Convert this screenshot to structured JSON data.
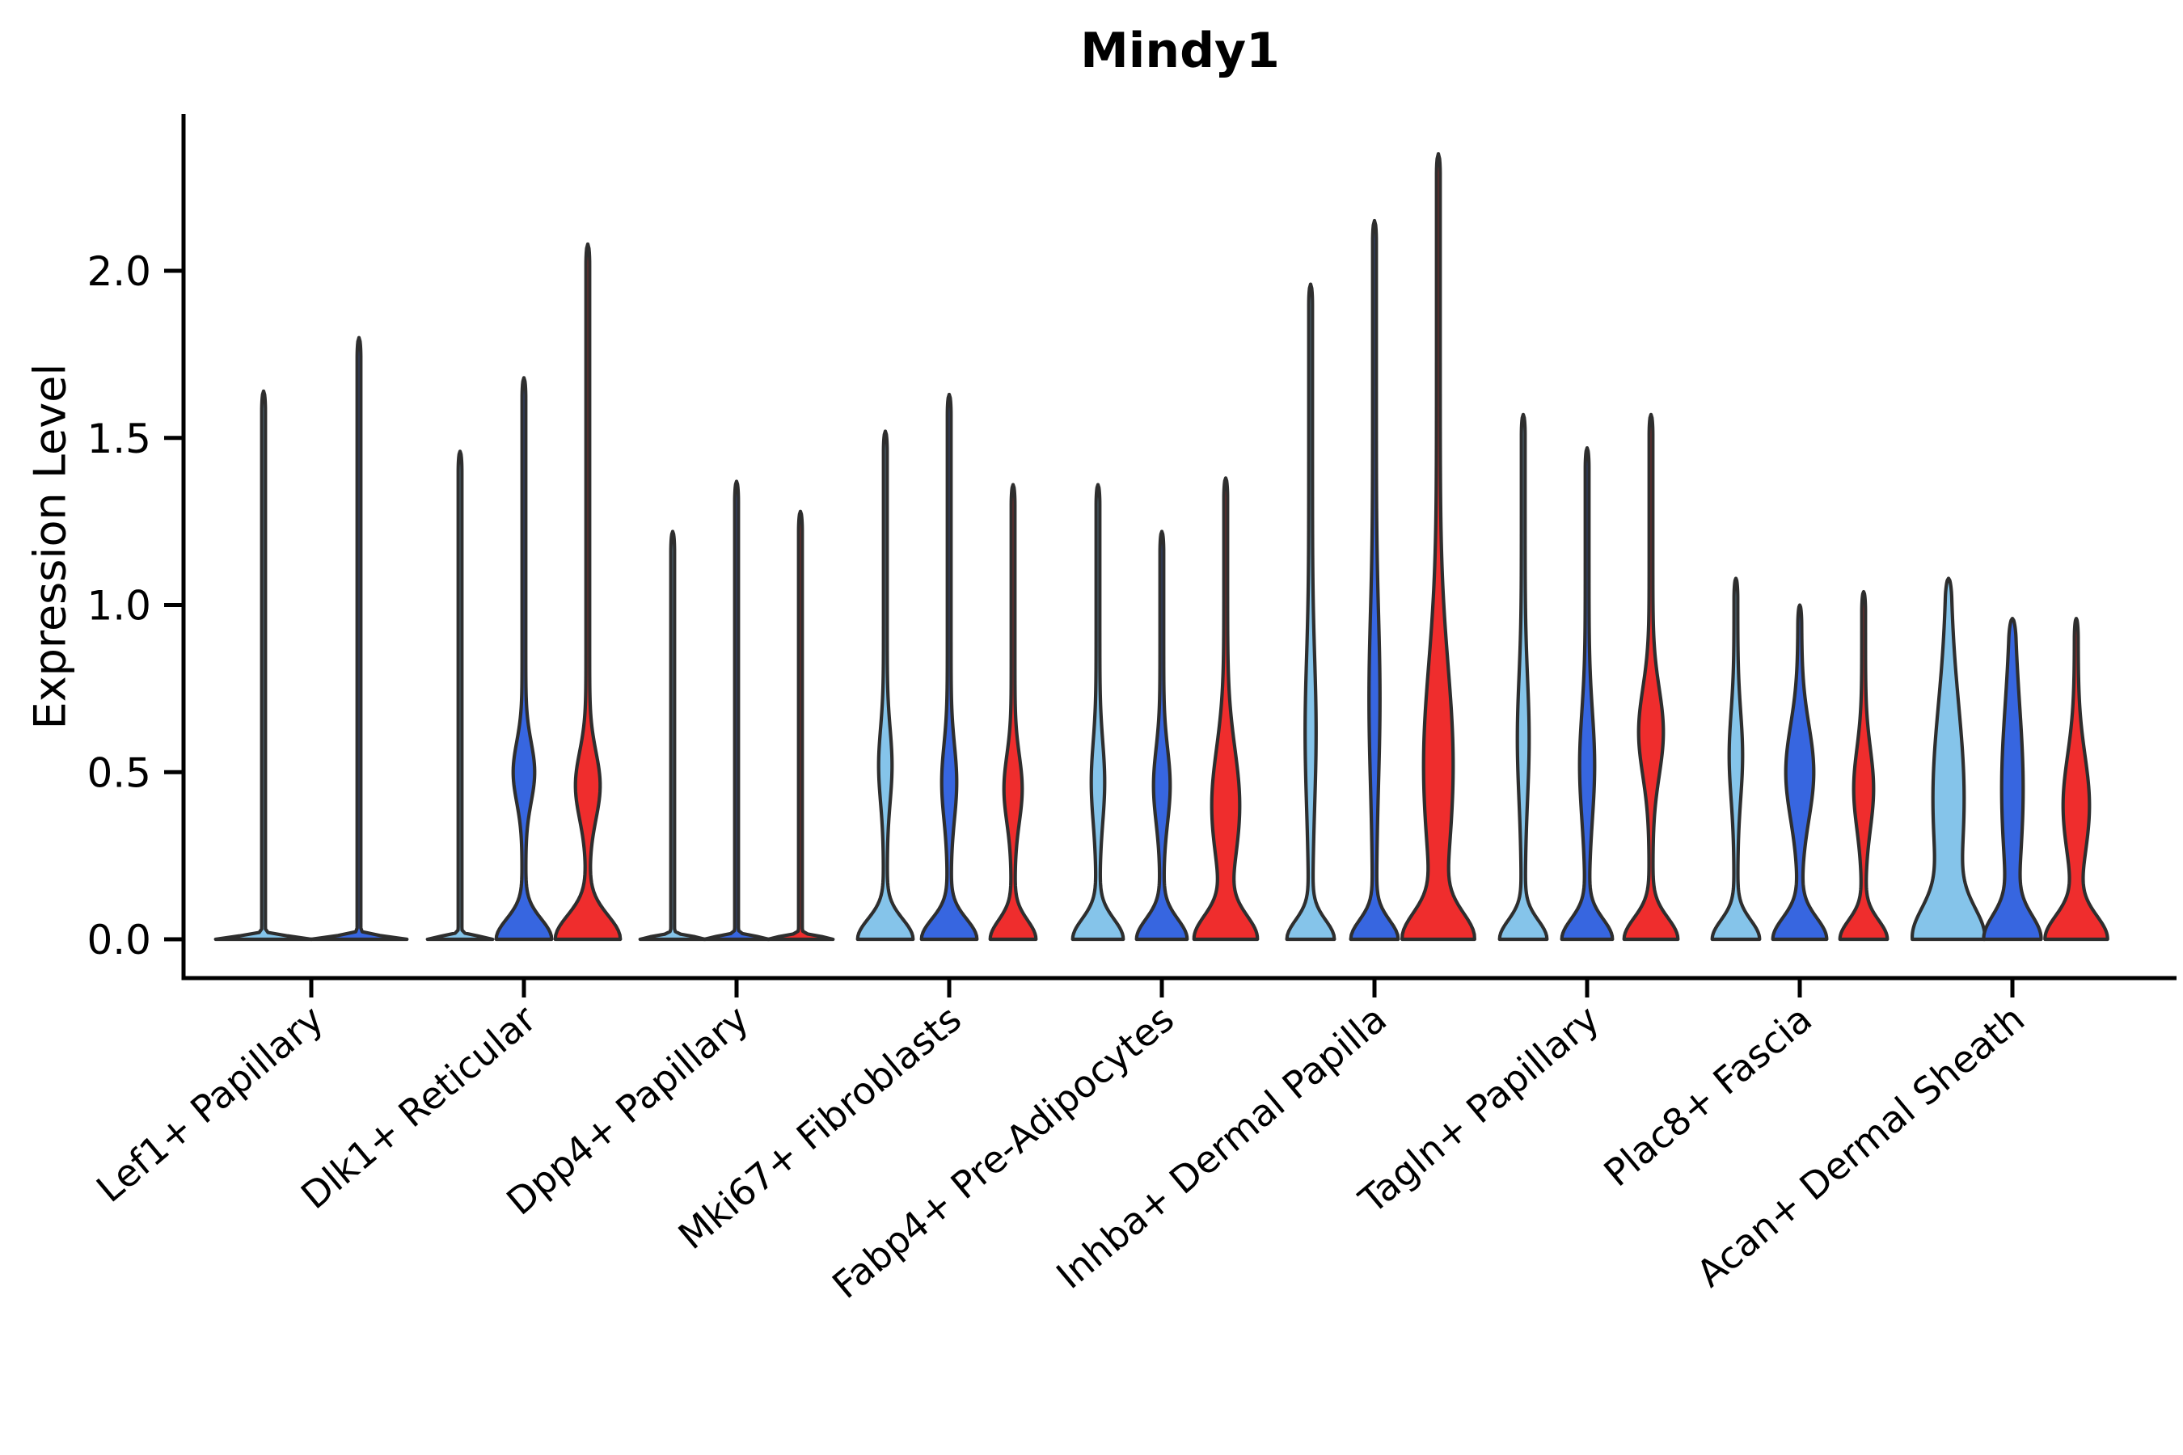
{
  "chart_data": {
    "type": "violin",
    "title": "Mindy1",
    "ylabel": "Expression Level",
    "xlabel": "",
    "yticks": [
      "0.0",
      "0.5",
      "1.0",
      "1.5",
      "2.0"
    ],
    "ytick_values": [
      0.0,
      0.5,
      1.0,
      1.5,
      2.0
    ],
    "ylim": [
      -0.12,
      2.47
    ],
    "legend": "none",
    "grid": "off",
    "tick_label_rotation_deg": 40,
    "split_colors": {
      "light_blue": "#85C4EA",
      "blue": "#3766E0",
      "red": "#EF2D2D"
    },
    "outline_color": "#2E2E2E",
    "axis_color": "#000000",
    "groups": [
      {
        "label": "Lef1+ Papillary",
        "violins": [
          {
            "split": "light_blue",
            "max": 1.64,
            "profile": {
              "base_halfwidth": 57,
              "base_sigma": 0.012
            }
          },
          {
            "split": "blue",
            "max": 1.8,
            "profile": {
              "base_halfwidth": 57,
              "base_sigma": 0.012
            }
          }
        ]
      },
      {
        "label": "Dlk1+ Reticular",
        "violins": [
          {
            "split": "light_blue",
            "max": 1.46,
            "profile": {
              "base_halfwidth": 38,
              "base_sigma": 0.012
            }
          },
          {
            "split": "blue",
            "max": 1.68,
            "profile": {
              "base_halfwidth": 32,
              "base_sigma": 0.085,
              "belly_center": 0.5,
              "belly_halfwidth": 11,
              "belly_sigma": 0.09
            }
          },
          {
            "split": "red",
            "max": 2.08,
            "profile": {
              "base_halfwidth": 38,
              "base_sigma": 0.1,
              "belly_center": 0.46,
              "belly_halfwidth": 13,
              "belly_sigma": 0.1
            }
          }
        ]
      },
      {
        "label": "Dpp4+ Papillary",
        "violins": [
          {
            "split": "light_blue",
            "max": 1.22,
            "profile": {
              "base_halfwidth": 38,
              "base_sigma": 0.012
            }
          },
          {
            "split": "blue",
            "max": 1.37,
            "profile": {
              "base_halfwidth": 38,
              "base_sigma": 0.012
            }
          },
          {
            "split": "red",
            "max": 1.28,
            "profile": {
              "base_halfwidth": 38,
              "base_sigma": 0.012
            }
          }
        ]
      },
      {
        "label": "Mki67+ Fibroblasts",
        "violins": [
          {
            "split": "light_blue",
            "max": 1.52,
            "profile": {
              "base_halfwidth": 32,
              "base_sigma": 0.085,
              "belly_center": 0.52,
              "belly_halfwidth": 6,
              "belly_sigma": 0.11
            }
          },
          {
            "split": "blue",
            "max": 1.63,
            "profile": {
              "base_halfwidth": 32,
              "base_sigma": 0.085,
              "belly_center": 0.47,
              "belly_halfwidth": 7,
              "belly_sigma": 0.11
            }
          },
          {
            "split": "red",
            "max": 1.36,
            "profile": {
              "base_halfwidth": 26,
              "base_sigma": 0.08,
              "belly_center": 0.45,
              "belly_halfwidth": 9,
              "belly_sigma": 0.1
            }
          }
        ]
      },
      {
        "label": "Fabp4+ Pre-Adipocytes",
        "violins": [
          {
            "split": "light_blue",
            "max": 1.36,
            "profile": {
              "base_halfwidth": 29,
              "base_sigma": 0.085,
              "belly_center": 0.47,
              "belly_halfwidth": 6,
              "belly_sigma": 0.12
            }
          },
          {
            "split": "blue",
            "max": 1.22,
            "profile": {
              "base_halfwidth": 29,
              "base_sigma": 0.085,
              "belly_center": 0.46,
              "belly_halfwidth": 8,
              "belly_sigma": 0.11
            }
          },
          {
            "split": "red",
            "max": 1.38,
            "profile": {
              "base_halfwidth": 36,
              "base_sigma": 0.1,
              "belly_center": 0.4,
              "belly_halfwidth": 15,
              "belly_sigma": 0.17
            }
          }
        ]
      },
      {
        "label": "Inhba+ Dermal Papilla",
        "violins": [
          {
            "split": "light_blue",
            "max": 1.96,
            "profile": {
              "base_halfwidth": 27,
              "base_sigma": 0.08,
              "belly_center": 0.62,
              "belly_halfwidth": 4.5,
              "belly_sigma": 0.22
            }
          },
          {
            "split": "blue",
            "max": 2.15,
            "profile": {
              "base_halfwidth": 27,
              "base_sigma": 0.08,
              "belly_center": 0.72,
              "belly_halfwidth": 4.5,
              "belly_sigma": 0.25
            }
          },
          {
            "split": "red",
            "max": 2.35,
            "profile": {
              "base_halfwidth": 39,
              "base_sigma": 0.11,
              "belly_center": 0.52,
              "belly_halfwidth": 16,
              "belly_sigma": 0.3
            }
          }
        ]
      },
      {
        "label": "Tagln+ Papillary",
        "violins": [
          {
            "split": "light_blue",
            "max": 1.57,
            "profile": {
              "base_halfwidth": 27,
              "base_sigma": 0.08,
              "belly_center": 0.6,
              "belly_halfwidth": 5,
              "belly_sigma": 0.18
            }
          },
          {
            "split": "blue",
            "max": 1.47,
            "profile": {
              "base_halfwidth": 29,
              "base_sigma": 0.085,
              "belly_center": 0.52,
              "belly_halfwidth": 7,
              "belly_sigma": 0.16
            }
          },
          {
            "split": "red",
            "max": 1.57,
            "profile": {
              "base_halfwidth": 31,
              "base_sigma": 0.09,
              "belly_center": 0.62,
              "belly_halfwidth": 13,
              "belly_sigma": 0.13
            }
          }
        ]
      },
      {
        "label": "Plac8+ Fascia",
        "violins": [
          {
            "split": "light_blue",
            "max": 1.08,
            "profile": {
              "base_halfwidth": 27,
              "base_sigma": 0.08,
              "belly_center": 0.55,
              "belly_halfwidth": 6,
              "belly_sigma": 0.13
            }
          },
          {
            "split": "blue",
            "max": 1.0,
            "profile": {
              "base_halfwidth": 31,
              "base_sigma": 0.09,
              "belly_center": 0.5,
              "belly_halfwidth": 15,
              "belly_sigma": 0.14
            }
          },
          {
            "split": "red",
            "max": 1.04,
            "profile": {
              "base_halfwidth": 27,
              "base_sigma": 0.08,
              "belly_center": 0.45,
              "belly_halfwidth": 10,
              "belly_sigma": 0.12
            }
          }
        ]
      },
      {
        "label": "Acan+ Dermal Sheath",
        "violins": [
          {
            "split": "light_blue",
            "max": 1.08,
            "profile": {
              "base_halfwidth": 37,
              "base_sigma": 0.13,
              "belly_center": 0.42,
              "belly_halfwidth": 17,
              "belly_sigma": 0.28
            }
          },
          {
            "split": "blue",
            "max": 0.96,
            "profile": {
              "base_halfwidth": 31,
              "base_sigma": 0.1,
              "belly_center": 0.45,
              "belly_halfwidth": 11,
              "belly_sigma": 0.25
            }
          },
          {
            "split": "red",
            "max": 0.96,
            "profile": {
              "base_halfwidth": 36,
              "base_sigma": 0.1,
              "belly_center": 0.4,
              "belly_halfwidth": 14,
              "belly_sigma": 0.15
            }
          }
        ]
      }
    ]
  }
}
